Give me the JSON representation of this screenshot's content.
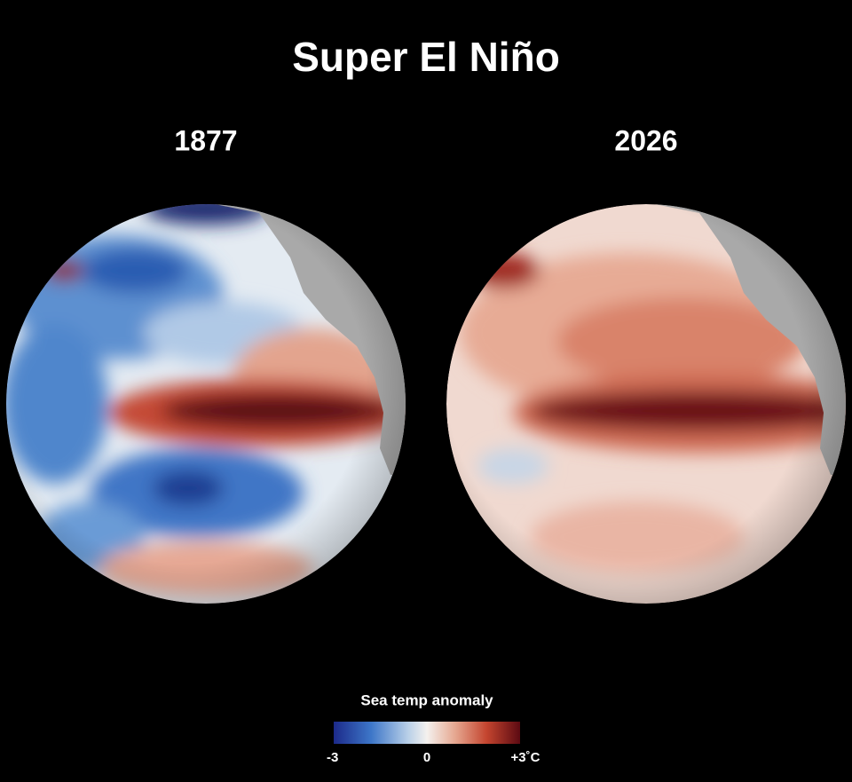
{
  "title": "Super El Niño",
  "maps": [
    {
      "label": "1877"
    },
    {
      "label": "2026"
    }
  ],
  "legend": {
    "title": "Sea temp anomaly",
    "ticks": [
      {
        "value": -3,
        "label": "-3"
      },
      {
        "value": 0,
        "label": "0"
      },
      {
        "value": 3,
        "label": "+3˚C"
      }
    ]
  }
}
